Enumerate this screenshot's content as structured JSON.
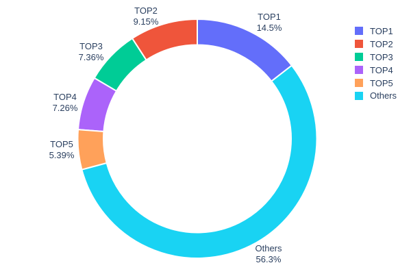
{
  "chart_data": {
    "type": "pie",
    "subtype": "donut",
    "hole": 0.785,
    "title": "",
    "legend_position": "right",
    "text_color": "#2a3f5f",
    "background_color": "#ffffff",
    "slices": [
      {
        "label": "TOP1",
        "value": 14.5,
        "percent_label": "14.5%",
        "color": "#636EFA"
      },
      {
        "label": "TOP2",
        "value": 9.15,
        "percent_label": "9.15%",
        "color": "#EF553B"
      },
      {
        "label": "TOP3",
        "value": 7.36,
        "percent_label": "7.36%",
        "color": "#00CC96"
      },
      {
        "label": "TOP4",
        "value": 7.26,
        "percent_label": "7.26%",
        "color": "#AB63FA"
      },
      {
        "label": "TOP5",
        "value": 5.39,
        "percent_label": "5.39%",
        "color": "#FFA15A"
      },
      {
        "label": "Others",
        "value": 56.3,
        "percent_label": "56.3%",
        "color": "#19D3F3"
      }
    ]
  }
}
